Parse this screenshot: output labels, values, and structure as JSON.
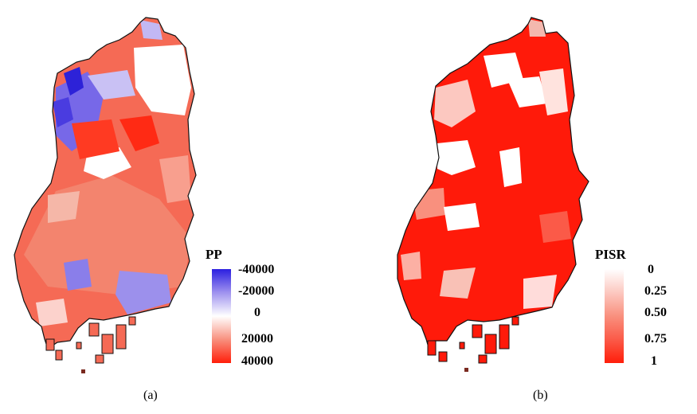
{
  "panels": [
    {
      "id": "a",
      "caption": "(a)",
      "legend": {
        "title": "PP",
        "ticks": [
          "-40000",
          "-20000",
          "0",
          "20000",
          "40000"
        ],
        "colors": [
          "#2b1fe0",
          "#9f92ef",
          "#ffffff",
          "#f8907e",
          "#ff1e0a"
        ]
      }
    },
    {
      "id": "b",
      "caption": "(b)",
      "legend": {
        "title": "PISR",
        "ticks": [
          "0",
          "0.25",
          "0.50",
          "0.75",
          "1"
        ],
        "colors": [
          "#ffffff",
          "#fcc8c0",
          "#f9907e",
          "#fb5a48",
          "#ff1e0a"
        ]
      }
    }
  ]
}
